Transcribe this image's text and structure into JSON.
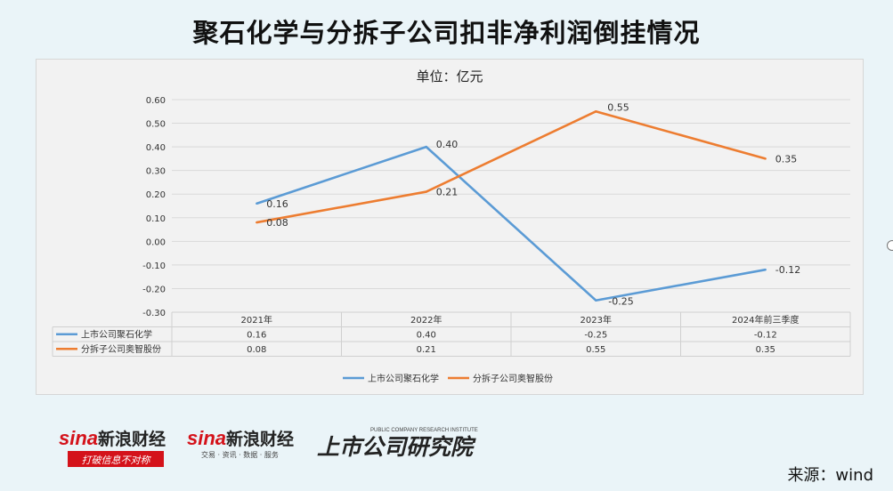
{
  "title": "聚石化学与分拆子公司扣非净利润倒挂情况",
  "source": "来源：wind",
  "logos": {
    "sina_brand": "sina",
    "sina_cn": "新浪财经",
    "sina_slogan": "打破信息不对称",
    "sina2_sub": "交易 · 资讯 · 数据 · 服务",
    "research_cn": "上市公司研究院",
    "research_en": "PUBLIC COMPANY RESEARCH INSTITUTE"
  },
  "chart_data": {
    "type": "line",
    "title": "单位：亿元",
    "categories": [
      "2021年",
      "2022年",
      "2023年",
      "2024年前三季度"
    ],
    "ylim": [
      -0.3,
      0.6
    ],
    "yticks": [
      "0.60",
      "0.50",
      "0.40",
      "0.30",
      "0.20",
      "0.10",
      "0.00",
      "-0.10",
      "-0.20",
      "-0.30"
    ],
    "ytick_values": [
      0.6,
      0.5,
      0.4,
      0.3,
      0.2,
      0.1,
      0.0,
      -0.1,
      -0.2,
      -0.3
    ],
    "grid": true,
    "legend": "bottom",
    "data_table": true,
    "series": [
      {
        "name": "上市公司聚石化学",
        "values": [
          0.16,
          0.4,
          -0.25,
          -0.12
        ],
        "labels": [
          "0.16",
          "0.40",
          "-0.25",
          "-0.12"
        ],
        "color": "#5b9bd5"
      },
      {
        "name": "分拆子公司奥智股份",
        "values": [
          0.08,
          0.21,
          0.55,
          0.35
        ],
        "labels": [
          "0.08",
          "0.21",
          "0.55",
          "0.35"
        ],
        "color": "#ed7d31"
      }
    ]
  }
}
